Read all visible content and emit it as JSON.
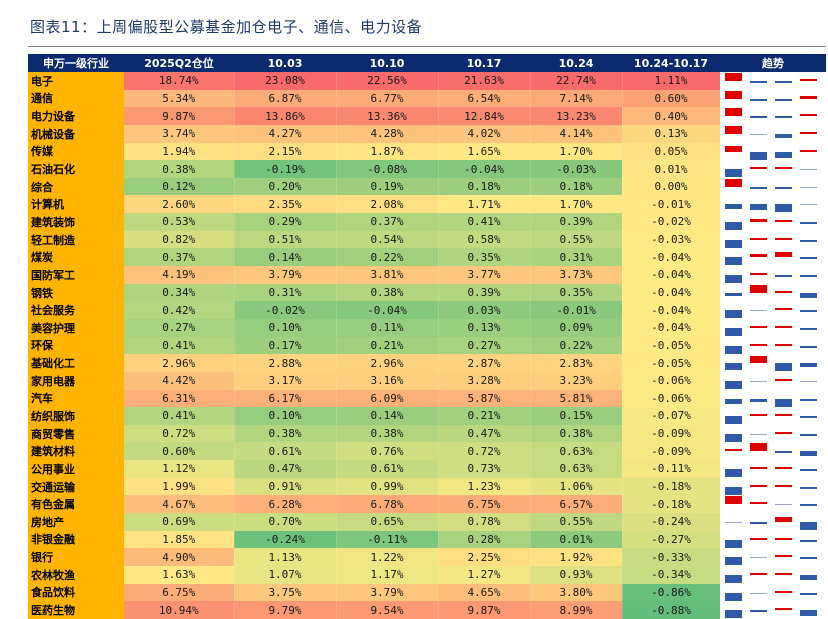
{
  "title": "图表11：上周偏股型公募基金加仓电子、通信、电力设备",
  "headers": [
    "申万一级行业",
    "2025Q2仓位",
    "10.03",
    "10.10",
    "10.17",
    "10.24",
    "10.24-10.17",
    "趋势"
  ],
  "colors": {
    "header_bg": "#0b2a6f",
    "industry_bg": "#ffb400",
    "trend_red": "#e00000",
    "trend_blue": "#2e5aa8"
  },
  "rows": [
    {
      "industry": "电子",
      "v": [
        "18.74%",
        "23.08%",
        "22.56%",
        "21.63%",
        "22.74%"
      ],
      "chg": "1.11%"
    },
    {
      "industry": "通信",
      "v": [
        "5.34%",
        "6.87%",
        "6.77%",
        "6.54%",
        "7.14%"
      ],
      "chg": "0.60%"
    },
    {
      "industry": "电力设备",
      "v": [
        "9.87%",
        "13.86%",
        "13.36%",
        "12.84%",
        "13.23%"
      ],
      "chg": "0.40%"
    },
    {
      "industry": "机械设备",
      "v": [
        "3.74%",
        "4.27%",
        "4.28%",
        "4.02%",
        "4.14%"
      ],
      "chg": "0.13%"
    },
    {
      "industry": "传媒",
      "v": [
        "1.94%",
        "2.15%",
        "1.87%",
        "1.65%",
        "1.70%"
      ],
      "chg": "0.05%"
    },
    {
      "industry": "石油石化",
      "v": [
        "0.38%",
        "-0.19%",
        "-0.08%",
        "-0.04%",
        "-0.03%"
      ],
      "chg": "0.01%"
    },
    {
      "industry": "综合",
      "v": [
        "0.12%",
        "0.20%",
        "0.19%",
        "0.18%",
        "0.18%"
      ],
      "chg": "0.00%"
    },
    {
      "industry": "计算机",
      "v": [
        "2.60%",
        "2.35%",
        "2.08%",
        "1.71%",
        "1.70%"
      ],
      "chg": "-0.01%"
    },
    {
      "industry": "建筑装饰",
      "v": [
        "0.53%",
        "0.29%",
        "0.37%",
        "0.41%",
        "0.39%"
      ],
      "chg": "-0.02%"
    },
    {
      "industry": "轻工制造",
      "v": [
        "0.82%",
        "0.51%",
        "0.54%",
        "0.58%",
        "0.55%"
      ],
      "chg": "-0.03%"
    },
    {
      "industry": "煤炭",
      "v": [
        "0.37%",
        "0.14%",
        "0.22%",
        "0.35%",
        "0.31%"
      ],
      "chg": "-0.04%"
    },
    {
      "industry": "国防军工",
      "v": [
        "4.19%",
        "3.79%",
        "3.81%",
        "3.77%",
        "3.73%"
      ],
      "chg": "-0.04%"
    },
    {
      "industry": "钢铁",
      "v": [
        "0.34%",
        "0.31%",
        "0.38%",
        "0.39%",
        "0.35%"
      ],
      "chg": "-0.04%"
    },
    {
      "industry": "社会服务",
      "v": [
        "0.42%",
        "-0.02%",
        "-0.04%",
        "0.03%",
        "-0.01%"
      ],
      "chg": "-0.04%"
    },
    {
      "industry": "美容护理",
      "v": [
        "0.27%",
        "0.10%",
        "0.11%",
        "0.13%",
        "0.09%"
      ],
      "chg": "-0.04%"
    },
    {
      "industry": "环保",
      "v": [
        "0.41%",
        "0.17%",
        "0.21%",
        "0.27%",
        "0.22%"
      ],
      "chg": "-0.05%"
    },
    {
      "industry": "基础化工",
      "v": [
        "2.96%",
        "2.88%",
        "2.96%",
        "2.87%",
        "2.83%"
      ],
      "chg": "-0.05%"
    },
    {
      "industry": "家用电器",
      "v": [
        "4.42%",
        "3.17%",
        "3.16%",
        "3.28%",
        "3.23%"
      ],
      "chg": "-0.06%"
    },
    {
      "industry": "汽车",
      "v": [
        "6.31%",
        "6.17%",
        "6.09%",
        "5.87%",
        "5.81%"
      ],
      "chg": "-0.06%"
    },
    {
      "industry": "纺织服饰",
      "v": [
        "0.41%",
        "0.10%",
        "0.14%",
        "0.21%",
        "0.15%"
      ],
      "chg": "-0.07%"
    },
    {
      "industry": "商贸零售",
      "v": [
        "0.72%",
        "0.38%",
        "0.38%",
        "0.47%",
        "0.38%"
      ],
      "chg": "-0.09%"
    },
    {
      "industry": "建筑材料",
      "v": [
        "0.60%",
        "0.61%",
        "0.76%",
        "0.72%",
        "0.63%"
      ],
      "chg": "-0.09%"
    },
    {
      "industry": "公用事业",
      "v": [
        "1.12%",
        "0.47%",
        "0.61%",
        "0.73%",
        "0.63%"
      ],
      "chg": "-0.11%"
    },
    {
      "industry": "交通运输",
      "v": [
        "1.99%",
        "0.91%",
        "0.99%",
        "1.23%",
        "1.06%"
      ],
      "chg": "-0.18%"
    },
    {
      "industry": "有色金属",
      "v": [
        "4.67%",
        "6.28%",
        "6.78%",
        "6.75%",
        "6.57%"
      ],
      "chg": "-0.18%"
    },
    {
      "industry": "房地产",
      "v": [
        "0.69%",
        "0.70%",
        "0.65%",
        "0.78%",
        "0.55%"
      ],
      "chg": "-0.24%"
    },
    {
      "industry": "非银金融",
      "v": [
        "1.85%",
        "-0.24%",
        "-0.11%",
        "0.28%",
        "0.01%"
      ],
      "chg": "-0.27%"
    },
    {
      "industry": "银行",
      "v": [
        "4.90%",
        "1.13%",
        "1.22%",
        "2.25%",
        "1.92%"
      ],
      "chg": "-0.33%"
    },
    {
      "industry": "农林牧渔",
      "v": [
        "1.63%",
        "1.07%",
        "1.17%",
        "1.27%",
        "0.93%"
      ],
      "chg": "-0.34%"
    },
    {
      "industry": "食品饮料",
      "v": [
        "6.75%",
        "3.75%",
        "3.79%",
        "4.65%",
        "3.80%"
      ],
      "chg": "-0.86%"
    },
    {
      "industry": "医药生物",
      "v": [
        "10.94%",
        "9.79%",
        "9.54%",
        "9.87%",
        "8.99%"
      ],
      "chg": "-0.88%"
    }
  ]
}
